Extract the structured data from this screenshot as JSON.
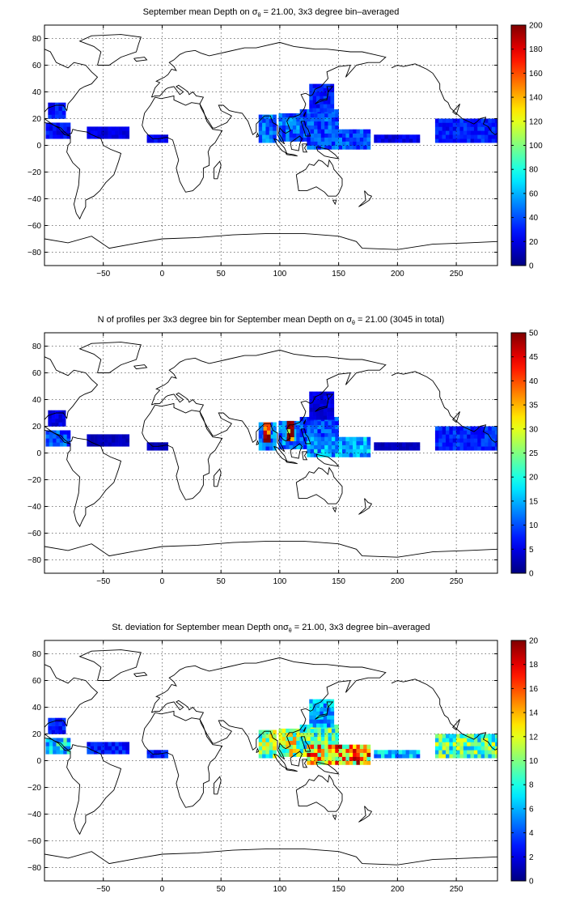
{
  "chart_data": [
    {
      "type": "heatmap",
      "title": "September mean Depth on σθ = 21.00, 3x3 degree bin–averaged",
      "title_parts": {
        "before": "September mean Depth on σ",
        "sub": "θ",
        "after": " = 21.00, 3x3 degree bin–averaged"
      },
      "xlim": [
        -100,
        285
      ],
      "ylim": [
        -90,
        90
      ],
      "x_ticks": [
        -50,
        0,
        50,
        100,
        150,
        200,
        250
      ],
      "y_ticks": [
        -80,
        -60,
        -40,
        -20,
        0,
        20,
        40,
        60,
        80
      ],
      "grid": true,
      "colorbar": {
        "min": 0,
        "max": 200,
        "ticks": [
          0,
          20,
          40,
          60,
          80,
          100,
          120,
          140,
          160,
          180,
          200
        ]
      },
      "colormap": "jet",
      "cells": [
        {
          "region": "Gulf of Mexico",
          "lon": [
            -97,
            -82
          ],
          "lat": [
            20,
            30
          ],
          "value": 30
        },
        {
          "region": "Caribbean",
          "lon": [
            -99,
            -78
          ],
          "lat": [
            5,
            17
          ],
          "value": 25
        },
        {
          "region": "Tropical Atlantic",
          "lon": [
            -64,
            -30
          ],
          "lat": [
            5,
            14
          ],
          "value": 20
        },
        {
          "region": "Gulf of Guinea",
          "lon": [
            -13,
            5
          ],
          "lat": [
            2,
            8
          ],
          "value": 25
        },
        {
          "region": "Bay of Bengal",
          "lon": [
            82,
            96
          ],
          "lat": [
            2,
            22
          ],
          "value": 45
        },
        {
          "region": "South China Sea",
          "lon": [
            99,
            118
          ],
          "lat": [
            3,
            24
          ],
          "value": 45
        },
        {
          "region": "Philippine Sea",
          "lon": [
            117,
            150
          ],
          "lat": [
            3,
            25
          ],
          "value": 40
        },
        {
          "region": "Western Pacific warm pool",
          "lon": [
            123,
            175
          ],
          "lat": [
            -3,
            12
          ],
          "value": 40
        },
        {
          "region": "Japan",
          "lon": [
            125,
            145
          ],
          "lat": [
            25,
            44
          ],
          "value": 30
        },
        {
          "region": "Central Pacific",
          "lon": [
            180,
            217
          ],
          "lat": [
            2,
            8
          ],
          "value": 20
        },
        {
          "region": "Eastern tropical Pacific",
          "lon": [
            232,
            290
          ],
          "lat": [
            2,
            20
          ],
          "value": 30
        }
      ]
    },
    {
      "type": "heatmap",
      "title": "N of profiles per 3x3 degree bin for September mean Depth on σθ = 21.00 (3045 in total)",
      "title_parts": {
        "before": "N of profiles per 3x3 degree bin for September mean Depth on σ",
        "sub": "θ",
        "after": " = 21.00 (3045 in total)"
      },
      "total_profiles": 3045,
      "xlim": [
        -100,
        285
      ],
      "ylim": [
        -90,
        90
      ],
      "x_ticks": [
        -50,
        0,
        50,
        100,
        150,
        200,
        250
      ],
      "y_ticks": [
        -80,
        -60,
        -40,
        -20,
        0,
        20,
        40,
        60,
        80
      ],
      "grid": true,
      "colorbar": {
        "min": 0,
        "max": 50,
        "ticks": [
          0,
          5,
          10,
          15,
          20,
          25,
          30,
          35,
          40,
          45,
          50
        ]
      },
      "colormap": "jet",
      "cells": [
        {
          "region": "Gulf of Mexico",
          "lon": [
            -97,
            -82
          ],
          "lat": [
            20,
            30
          ],
          "value": 5
        },
        {
          "region": "Caribbean",
          "lon": [
            -99,
            -78
          ],
          "lat": [
            5,
            17
          ],
          "value": 10
        },
        {
          "region": "Tropical Atlantic",
          "lon": [
            -64,
            -30
          ],
          "lat": [
            5,
            14
          ],
          "value": 3
        },
        {
          "region": "Gulf of Guinea",
          "lon": [
            -13,
            5
          ],
          "lat": [
            2,
            8
          ],
          "value": 3
        },
        {
          "region": "Bay of Bengal",
          "lon": [
            82,
            96
          ],
          "lat": [
            2,
            22
          ],
          "value": 12
        },
        {
          "region": "Bay of Bengal hot spot",
          "lon": [
            86,
            92
          ],
          "lat": [
            8,
            22
          ],
          "value": 45
        },
        {
          "region": "South China Sea",
          "lon": [
            99,
            118
          ],
          "lat": [
            3,
            24
          ],
          "value": 12
        },
        {
          "region": "South China Sea hot spot",
          "lon": [
            106,
            112
          ],
          "lat": [
            9,
            24
          ],
          "value": 45
        },
        {
          "region": "Philippine Sea",
          "lon": [
            117,
            150
          ],
          "lat": [
            3,
            25
          ],
          "value": 10
        },
        {
          "region": "Western Pacific warm pool",
          "lon": [
            123,
            175
          ],
          "lat": [
            -3,
            12
          ],
          "value": 15
        },
        {
          "region": "Japan",
          "lon": [
            125,
            145
          ],
          "lat": [
            25,
            44
          ],
          "value": 5
        },
        {
          "region": "Central Pacific",
          "lon": [
            180,
            217
          ],
          "lat": [
            2,
            8
          ],
          "value": 3
        },
        {
          "region": "Eastern tropical Pacific",
          "lon": [
            232,
            290
          ],
          "lat": [
            2,
            20
          ],
          "value": 8
        }
      ]
    },
    {
      "type": "heatmap",
      "title": "St. deviation for September mean Depth onσθ = 21.00, 3x3 degree bin–averaged",
      "title_parts": {
        "before": "St. deviation for September mean Depth on",
        "sub": "θ",
        "sigma": "σ",
        "after": " = 21.00, 3x3 degree bin–averaged"
      },
      "xlim": [
        -100,
        285
      ],
      "ylim": [
        -90,
        90
      ],
      "x_ticks": [
        -50,
        0,
        50,
        100,
        150,
        200,
        250
      ],
      "y_ticks": [
        -80,
        -60,
        -40,
        -20,
        0,
        20,
        40,
        60,
        80
      ],
      "grid": true,
      "colorbar": {
        "min": 0,
        "max": 20,
        "ticks": [
          0,
          2,
          4,
          6,
          8,
          10,
          12,
          14,
          16,
          18,
          20
        ]
      },
      "colormap": "jet",
      "cells": [
        {
          "region": "Gulf of Mexico",
          "lon": [
            -97,
            -82
          ],
          "lat": [
            20,
            30
          ],
          "value": 3
        },
        {
          "region": "Caribbean",
          "lon": [
            -99,
            -78
          ],
          "lat": [
            5,
            17
          ],
          "value": 7
        },
        {
          "region": "Tropical Atlantic",
          "lon": [
            -64,
            -30
          ],
          "lat": [
            5,
            14
          ],
          "value": 3
        },
        {
          "region": "Gulf of Guinea",
          "lon": [
            -13,
            5
          ],
          "lat": [
            2,
            8
          ],
          "value": 3
        },
        {
          "region": "Bay of Bengal",
          "lon": [
            82,
            96
          ],
          "lat": [
            2,
            22
          ],
          "value": 10
        },
        {
          "region": "South China Sea",
          "lon": [
            99,
            118
          ],
          "lat": [
            3,
            24
          ],
          "value": 11
        },
        {
          "region": "Philippine Sea",
          "lon": [
            117,
            150
          ],
          "lat": [
            3,
            25
          ],
          "value": 9
        },
        {
          "region": "Western Pacific warm pool",
          "lon": [
            123,
            175
          ],
          "lat": [
            -3,
            12
          ],
          "value": 14
        },
        {
          "region": "Japan",
          "lon": [
            125,
            145
          ],
          "lat": [
            25,
            44
          ],
          "value": 6
        },
        {
          "region": "Central Pacific",
          "lon": [
            180,
            217
          ],
          "lat": [
            2,
            8
          ],
          "value": 6
        },
        {
          "region": "Eastern tropical Pacific",
          "lon": [
            232,
            290
          ],
          "lat": [
            2,
            20
          ],
          "value": 9
        }
      ]
    }
  ]
}
